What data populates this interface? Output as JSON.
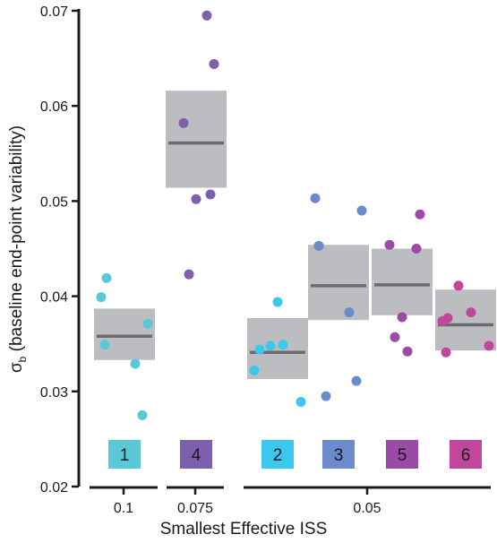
{
  "chart_data": {
    "type": "scatter",
    "xlabel": "Smallest Effective ISS",
    "ylabel_symbol": "σ",
    "ylabel_sub": "b",
    "ylabel_rest": " (baseline end-point variability)",
    "ylim": [
      0.02,
      0.07
    ],
    "yticks": [
      "0.02",
      "0.03",
      "0.04",
      "0.05",
      "0.06",
      "0.07"
    ],
    "xgroups": [
      {
        "label": "0.1",
        "groups": [
          "1"
        ]
      },
      {
        "label": "0.075",
        "groups": [
          "4"
        ]
      },
      {
        "label": "0.05",
        "groups": [
          "2",
          "3",
          "5",
          "6"
        ]
      }
    ],
    "groups": [
      {
        "label": "1",
        "color": "#5bc8d8",
        "mean": 0.0358,
        "box": [
          0.0333,
          0.0387
        ],
        "points": [
          0.0419,
          0.0399,
          0.0371,
          0.0349,
          0.0329,
          0.0275
        ]
      },
      {
        "label": "4",
        "color": "#7e5fae",
        "mean": 0.0561,
        "box": [
          0.0514,
          0.0616
        ],
        "points": [
          0.0695,
          0.0644,
          0.0582,
          0.0507,
          0.0502,
          0.0423
        ]
      },
      {
        "label": "2",
        "color": "#3cc8ee",
        "mean": 0.0341,
        "box": [
          0.0313,
          0.0377
        ],
        "points": [
          0.0394,
          0.0348,
          0.0349,
          0.0344,
          0.0322,
          0.0289
        ]
      },
      {
        "label": "3",
        "color": "#6a8bcc",
        "mean": 0.0411,
        "box": [
          0.0375,
          0.0454
        ],
        "points": [
          0.0503,
          0.049,
          0.0453,
          0.0383,
          0.0311,
          0.0295
        ]
      },
      {
        "label": "5",
        "color": "#9b4aa8",
        "mean": 0.0412,
        "box": [
          0.038,
          0.045
        ],
        "points": [
          0.0486,
          0.0454,
          0.045,
          0.0378,
          0.0357,
          0.0342
        ]
      },
      {
        "label": "6",
        "color": "#c0479c",
        "mean": 0.037,
        "box": [
          0.0343,
          0.0407
        ],
        "points": [
          0.0411,
          0.0383,
          0.0377,
          0.0374,
          0.0348,
          0.0341
        ]
      }
    ],
    "box_color": "#bcbdc0",
    "mean_line_color": "#6b6b6e",
    "grid": false
  }
}
